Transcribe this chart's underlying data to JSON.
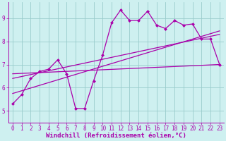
{
  "xlabel": "Windchill (Refroidissement éolien,°C)",
  "bg_color": "#cef0f0",
  "line_color": "#aa00aa",
  "grid_color": "#99cccc",
  "xlim": [
    -0.5,
    23.5
  ],
  "ylim": [
    4.5,
    9.7
  ],
  "xticks": [
    0,
    1,
    2,
    3,
    4,
    5,
    6,
    7,
    8,
    9,
    10,
    11,
    12,
    13,
    14,
    15,
    16,
    17,
    18,
    19,
    20,
    21,
    22,
    23
  ],
  "yticks": [
    5,
    6,
    7,
    8,
    9
  ],
  "line1_x": [
    0,
    1,
    2,
    3,
    4,
    5,
    6,
    7,
    8,
    9,
    10,
    11,
    12,
    13,
    14,
    15,
    16,
    17,
    18,
    19,
    20,
    21,
    22,
    23
  ],
  "line1_y": [
    5.3,
    5.7,
    6.4,
    6.7,
    6.8,
    7.2,
    6.6,
    5.1,
    5.1,
    6.3,
    7.4,
    8.8,
    9.35,
    8.9,
    8.9,
    9.3,
    8.7,
    8.55,
    8.9,
    8.7,
    8.75,
    8.1,
    8.1,
    7.0
  ],
  "line2_x": [
    0,
    23
  ],
  "line2_y": [
    6.6,
    7.0
  ],
  "line3_x": [
    0,
    23
  ],
  "line3_y": [
    6.4,
    8.3
  ],
  "line4_x": [
    0,
    23
  ],
  "line4_y": [
    5.75,
    8.45
  ],
  "markersize": 2.5,
  "linewidth": 0.9,
  "tick_fontsize": 5.5,
  "xlabel_fontsize": 6.5
}
